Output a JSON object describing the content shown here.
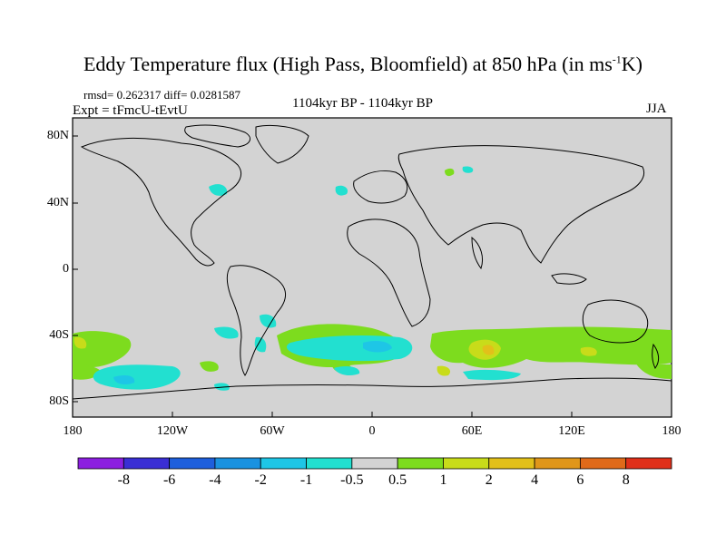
{
  "title": "Eddy Temperature flux (High Pass, Bloomfield) at 850 hPa (in ms",
  "title_unit_sup": "-1",
  "title_unit_end": "K)",
  "stats": "rmsd= 0.262317 diff= 0.0281587",
  "expt": "Expt = tFmcU-tEvtU",
  "period": "1104kyr BP - 1104kyr BP",
  "season": "JJA",
  "lat_labels": [
    "80N",
    "40N",
    "0",
    "40S",
    "80S"
  ],
  "lon_labels": [
    "180",
    "120W",
    "60W",
    "0",
    "60E",
    "120E",
    "180"
  ],
  "colorbar": {
    "labels": [
      "-8",
      "-6",
      "-4",
      "-2",
      "-1",
      "-0.5",
      "0.5",
      "1",
      "2",
      "4",
      "6",
      "8"
    ],
    "colors": [
      "#8c1fe0",
      "#3a2fd4",
      "#1e5fdc",
      "#1a92e0",
      "#1ec6e6",
      "#22e0d0",
      "#d3d3d3",
      "#7ddc1e",
      "#c8dc1a",
      "#e2c01a",
      "#e0961a",
      "#e06a1a",
      "#e0301a"
    ]
  },
  "map_colors": {
    "background": "#d3d3d3",
    "coast": "#000000"
  }
}
